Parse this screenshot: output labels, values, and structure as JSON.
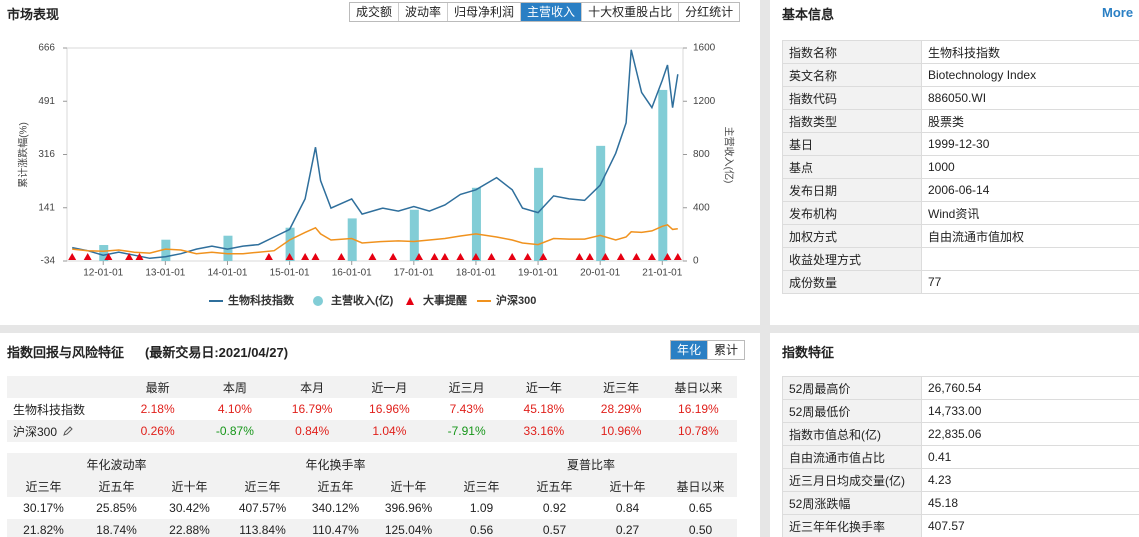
{
  "market_panel": {
    "title": "市场表现",
    "tabs": [
      "成交额",
      "波动率",
      "归母净利润",
      "主营收入",
      "十大权重股占比",
      "分红统计"
    ],
    "active_tab": 3
  },
  "chart_data": {
    "type": "combo",
    "legend": "bottom",
    "y_label": "累计涨跌幅(%)",
    "y2_label": "主营收入(亿)",
    "ylim": [
      -34,
      666
    ],
    "yticks": [
      -34,
      141,
      316,
      491,
      666
    ],
    "y2lim": [
      0,
      1600
    ],
    "y2ticks": [
      0,
      400,
      800,
      1200,
      1600
    ],
    "xlim": [
      "11-06-01",
      "21-05-01"
    ],
    "xticks": [
      "12-01-01",
      "13-01-01",
      "14-01-01",
      "15-01-01",
      "16-01-01",
      "17-01-01",
      "18-01-01",
      "19-01-01",
      "20-01-01",
      "21-01-01"
    ],
    "x": [
      "11-07-01",
      "11-10-01",
      "12-01-01",
      "12-04-01",
      "12-07-01",
      "12-10-01",
      "13-01-01",
      "13-04-01",
      "13-07-01",
      "13-10-01",
      "14-01-01",
      "14-04-01",
      "14-07-01",
      "14-10-01",
      "15-01-01",
      "15-04-01",
      "15-06-01",
      "15-07-01",
      "15-09-01",
      "16-01-01",
      "16-03-01",
      "16-07-01",
      "16-10-01",
      "17-01-01",
      "17-04-01",
      "17-07-01",
      "17-10-01",
      "18-01-01",
      "18-05-01",
      "18-08-01",
      "18-10-01",
      "19-01-01",
      "19-04-01",
      "19-07-01",
      "19-10-01",
      "20-01-01",
      "20-04-01",
      "20-06-01",
      "20-07-01",
      "20-09-01",
      "20-11-01",
      "21-01-01",
      "21-02-01",
      "21-03-01",
      "21-04-01"
    ],
    "series": [
      {
        "name": "生物科技指数",
        "type": "line",
        "color": "#2f6f9c",
        "values": [
          10,
          0,
          -15,
          -5,
          -15,
          -25,
          -20,
          -10,
          5,
          15,
          5,
          15,
          20,
          45,
          70,
          170,
          340,
          230,
          140,
          170,
          120,
          140,
          130,
          145,
          130,
          150,
          185,
          200,
          240,
          200,
          140,
          125,
          180,
          170,
          165,
          215,
          320,
          420,
          660,
          520,
          470,
          560,
          610,
          470,
          580
        ]
      },
      {
        "name": "主营收入(亿)",
        "type": "bar",
        "color": "#82cdd6",
        "axis": "y2",
        "x": [
          "12-01-01",
          "13-01-01",
          "14-01-01",
          "15-01-01",
          "16-01-01",
          "17-01-01",
          "18-01-01",
          "19-01-01",
          "20-01-01",
          "21-01-01"
        ],
        "values": [
          120,
          160,
          190,
          250,
          320,
          385,
          550,
          700,
          865,
          1285
        ]
      },
      {
        "name": "大事提醒",
        "type": "event",
        "color": "#e60012",
        "x": [
          "11-07-01",
          "11-10-01",
          "12-02-01",
          "12-06-01",
          "12-08-01",
          "14-09-01",
          "15-01-01",
          "15-04-01",
          "15-06-01",
          "15-11-01",
          "16-05-01",
          "16-09-01",
          "17-02-01",
          "17-05-01",
          "17-07-01",
          "17-10-01",
          "18-01-01",
          "18-04-01",
          "18-08-01",
          "18-11-01",
          "19-02-01",
          "19-09-01",
          "19-11-01",
          "20-02-01",
          "20-05-01",
          "20-08-01",
          "20-11-01",
          "21-02-01",
          "21-04-01"
        ]
      },
      {
        "name": "沪深300",
        "type": "line",
        "color": "#f0921e",
        "values": [
          5,
          0,
          -2,
          2,
          -5,
          -8,
          5,
          2,
          -10,
          -5,
          -10,
          -10,
          -5,
          0,
          35,
          60,
          75,
          55,
          35,
          40,
          25,
          30,
          32,
          30,
          35,
          40,
          48,
          55,
          45,
          35,
          25,
          20,
          40,
          38,
          38,
          50,
          35,
          45,
          62,
          60,
          65,
          80,
          85,
          70,
          72
        ]
      }
    ]
  },
  "returns_panel": {
    "title": "指数回报与风险特征",
    "subtitle": "(最新交易日:2021/04/27)",
    "tabs": [
      "年化",
      "累计"
    ],
    "active_tab": 0,
    "returns_table": {
      "header": [
        "最新",
        "本周",
        "本月",
        "近一月",
        "近三月",
        "近一年",
        "近三年",
        "基日以来"
      ],
      "rows": [
        {
          "name": "生物科技指数",
          "cells": [
            "2.18%",
            "4.10%",
            "16.79%",
            "16.96%",
            "7.43%",
            "45.18%",
            "28.29%",
            "16.19%"
          ]
        },
        {
          "name": "沪深300",
          "cells": [
            "0.26%",
            "-0.87%",
            "0.84%",
            "1.04%",
            "-7.91%",
            "33.16%",
            "10.96%",
            "10.78%"
          ]
        }
      ]
    },
    "risk_table": {
      "groups": [
        "年化波动率",
        "年化换手率",
        "夏普比率"
      ],
      "columns": [
        "近三年",
        "近五年",
        "近十年",
        "近三年",
        "近五年",
        "近十年",
        "近三年",
        "近五年",
        "近十年",
        "基日以来"
      ],
      "rows": [
        [
          "30.17%",
          "25.85%",
          "30.42%",
          "407.57%",
          "340.12%",
          "396.96%",
          "1.09",
          "0.92",
          "0.84",
          "0.65"
        ],
        [
          "21.82%",
          "18.74%",
          "22.88%",
          "113.84%",
          "110.47%",
          "125.04%",
          "0.56",
          "0.57",
          "0.27",
          "0.50"
        ]
      ]
    }
  },
  "basic_info": {
    "title": "基本信息",
    "more": "More",
    "rows": [
      [
        "指数名称",
        "生物科技指数"
      ],
      [
        "英文名称",
        "Biotechnology Index"
      ],
      [
        "指数代码",
        "886050.WI"
      ],
      [
        "指数类型",
        "股票类"
      ],
      [
        "基日",
        "1999-12-30"
      ],
      [
        "基点",
        "1000"
      ],
      [
        "发布日期",
        "2006-06-14"
      ],
      [
        "发布机构",
        "Wind资讯"
      ],
      [
        "加权方式",
        "自由流通市值加权"
      ],
      [
        "收益处理方式",
        null
      ],
      [
        "成份数量",
        "77"
      ]
    ]
  },
  "index_features": {
    "title": "指数特征",
    "rows": [
      [
        "52周最高价",
        "26,760.54"
      ],
      [
        "52周最低价",
        "14,733.00"
      ],
      [
        "指数市值总和(亿)",
        "22,835.06"
      ],
      [
        "自由流通市值占比",
        "0.41"
      ],
      [
        "近三月日均成交量(亿)",
        "4.23"
      ],
      [
        "52周涨跌幅",
        "45.18"
      ],
      [
        "近三年年化换手率",
        "407.57"
      ]
    ]
  }
}
